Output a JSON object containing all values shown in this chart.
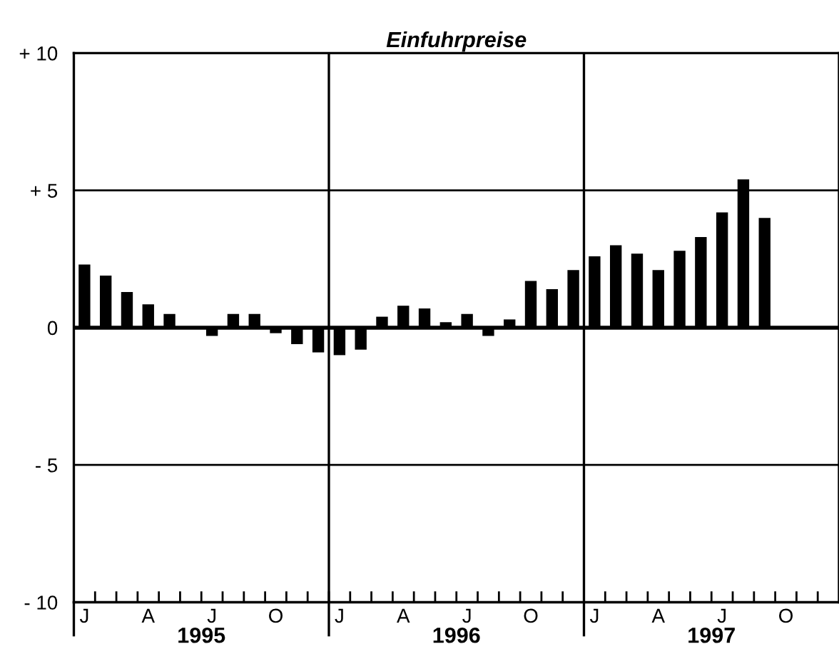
{
  "chart_data": {
    "type": "bar",
    "title": "Einfuhrpreise",
    "categories": [
      "J",
      null,
      null,
      "A",
      null,
      null,
      "J",
      null,
      null,
      "O",
      null,
      null,
      "J",
      null,
      null,
      "A",
      null,
      null,
      "J",
      null,
      null,
      "O",
      null,
      null,
      "J",
      null,
      null,
      "A",
      null,
      null,
      "J",
      null,
      null,
      "O",
      null,
      null
    ],
    "values": [
      2.3,
      1.9,
      1.3,
      0.85,
      0.5,
      null,
      -0.3,
      0.5,
      0.5,
      -0.2,
      -0.6,
      -0.9,
      -1.0,
      -0.8,
      0.4,
      0.8,
      0.7,
      0.2,
      0.5,
      -0.3,
      0.3,
      1.7,
      1.4,
      2.1,
      2.6,
      3.0,
      2.7,
      2.1,
      2.8,
      3.3,
      4.2,
      5.4,
      4.0,
      null,
      null,
      null
    ],
    "color": "#000000",
    "ylim": [
      -10,
      10
    ],
    "yticks": [
      {
        "value": 10,
        "label": "+ 10"
      },
      {
        "value": 5,
        "label": "+ 5"
      },
      0,
      {
        "value": -5,
        "label": "- 5"
      },
      {
        "value": -10,
        "label": "- 10"
      }
    ],
    "grid": "y",
    "ref_lines": [
      {
        "axis": "y",
        "value": 0,
        "color": "#000000"
      }
    ],
    "annotations": [
      "1995",
      "1996",
      "1997"
    ]
  }
}
